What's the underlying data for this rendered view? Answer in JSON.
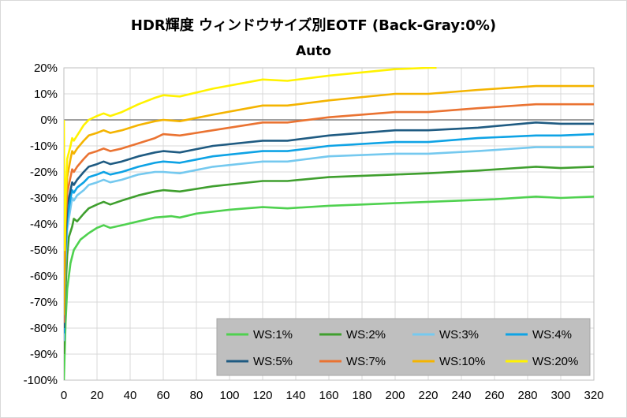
{
  "chart_data": {
    "type": "line",
    "title": "HDR輝度 ウィンドウサイズ別EOTF (Back-Gray:0%)",
    "subtitle": "Auto",
    "xlabel": "",
    "ylabel": "",
    "xlim": [
      0,
      320
    ],
    "ylim": [
      -100,
      20
    ],
    "x_ticks": [
      "0",
      "20",
      "40",
      "60",
      "80",
      "100",
      "120",
      "140",
      "160",
      "180",
      "200",
      "220",
      "240",
      "260",
      "280",
      "300",
      "320"
    ],
    "y_ticks": [
      "20%",
      "10%",
      "0%",
      "-10%",
      "-20%",
      "-30%",
      "-40%",
      "-50%",
      "-60%",
      "-70%",
      "-80%",
      "-90%",
      "-100%"
    ],
    "grid": true,
    "legend_position": "bottom-right",
    "series": [
      {
        "name": "WS:1%",
        "color": "#4fd14f",
        "points": [
          [
            0,
            -100
          ],
          [
            1,
            -78
          ],
          [
            2,
            -65
          ],
          [
            4,
            -55
          ],
          [
            6,
            -50
          ],
          [
            10,
            -46
          ],
          [
            15,
            -43.5
          ],
          [
            20,
            -41.5
          ],
          [
            24,
            -40.5
          ],
          [
            28,
            -41.5
          ],
          [
            35,
            -40.5
          ],
          [
            45,
            -39
          ],
          [
            55,
            -37.5
          ],
          [
            65,
            -37
          ],
          [
            70,
            -37.5
          ],
          [
            80,
            -36
          ],
          [
            100,
            -34.5
          ],
          [
            120,
            -33.5
          ],
          [
            135,
            -34
          ],
          [
            160,
            -33
          ],
          [
            180,
            -32.5
          ],
          [
            200,
            -32
          ],
          [
            220,
            -31.5
          ],
          [
            260,
            -30.5
          ],
          [
            285,
            -29.5
          ],
          [
            300,
            -30
          ],
          [
            320,
            -29.5
          ]
        ]
      },
      {
        "name": "WS:2%",
        "color": "#3f9f2e",
        "points": [
          [
            0,
            -90
          ],
          [
            1,
            -65
          ],
          [
            2,
            -52
          ],
          [
            3,
            -45
          ],
          [
            5,
            -41
          ],
          [
            6,
            -38
          ],
          [
            8,
            -39
          ],
          [
            12,
            -36
          ],
          [
            15,
            -34
          ],
          [
            20,
            -32.5
          ],
          [
            24,
            -31.5
          ],
          [
            28,
            -32.5
          ],
          [
            35,
            -31
          ],
          [
            45,
            -29
          ],
          [
            55,
            -27.5
          ],
          [
            60,
            -27
          ],
          [
            70,
            -27.5
          ],
          [
            90,
            -25.5
          ],
          [
            120,
            -23.5
          ],
          [
            135,
            -23.5
          ],
          [
            160,
            -22
          ],
          [
            200,
            -21
          ],
          [
            220,
            -20.5
          ],
          [
            250,
            -19.5
          ],
          [
            285,
            -18
          ],
          [
            300,
            -18.5
          ],
          [
            320,
            -18
          ]
        ]
      },
      {
        "name": "WS:3%",
        "color": "#75c9ef",
        "points": [
          [
            0,
            -85
          ],
          [
            1,
            -55
          ],
          [
            2,
            -42
          ],
          [
            4,
            -34
          ],
          [
            5,
            -30
          ],
          [
            6,
            -31
          ],
          [
            8,
            -29
          ],
          [
            12,
            -27
          ],
          [
            15,
            -25
          ],
          [
            20,
            -24
          ],
          [
            24,
            -23
          ],
          [
            28,
            -24
          ],
          [
            35,
            -23
          ],
          [
            45,
            -21
          ],
          [
            55,
            -20
          ],
          [
            60,
            -20
          ],
          [
            70,
            -20.5
          ],
          [
            90,
            -18
          ],
          [
            120,
            -16
          ],
          [
            135,
            -16
          ],
          [
            160,
            -14
          ],
          [
            200,
            -13
          ],
          [
            220,
            -13
          ],
          [
            250,
            -12
          ],
          [
            285,
            -10.5
          ],
          [
            300,
            -10.5
          ],
          [
            320,
            -10.5
          ]
        ]
      },
      {
        "name": "WS:4%",
        "color": "#0ea3e5",
        "points": [
          [
            0,
            -82
          ],
          [
            1,
            -50
          ],
          [
            2,
            -38
          ],
          [
            4,
            -30
          ],
          [
            5,
            -27
          ],
          [
            6,
            -28
          ],
          [
            8,
            -26
          ],
          [
            12,
            -24
          ],
          [
            15,
            -22
          ],
          [
            20,
            -21
          ],
          [
            24,
            -20
          ],
          [
            28,
            -21
          ],
          [
            35,
            -20
          ],
          [
            45,
            -18
          ],
          [
            55,
            -16.5
          ],
          [
            60,
            -16
          ],
          [
            70,
            -16.5
          ],
          [
            90,
            -14
          ],
          [
            120,
            -12
          ],
          [
            135,
            -12
          ],
          [
            160,
            -10
          ],
          [
            200,
            -8.5
          ],
          [
            220,
            -8.5
          ],
          [
            250,
            -7
          ],
          [
            285,
            -6
          ],
          [
            300,
            -6
          ],
          [
            320,
            -5.5
          ]
        ]
      },
      {
        "name": "WS:5%",
        "color": "#1f5b82",
        "points": [
          [
            0,
            -80
          ],
          [
            1,
            -45
          ],
          [
            2,
            -33
          ],
          [
            4,
            -27
          ],
          [
            5,
            -24
          ],
          [
            6,
            -25
          ],
          [
            8,
            -23
          ],
          [
            12,
            -20
          ],
          [
            15,
            -18
          ],
          [
            20,
            -17
          ],
          [
            24,
            -16
          ],
          [
            28,
            -17
          ],
          [
            35,
            -16
          ],
          [
            45,
            -14
          ],
          [
            55,
            -12.5
          ],
          [
            60,
            -12
          ],
          [
            70,
            -12.5
          ],
          [
            90,
            -10
          ],
          [
            120,
            -8
          ],
          [
            135,
            -8
          ],
          [
            160,
            -6
          ],
          [
            200,
            -4
          ],
          [
            220,
            -4
          ],
          [
            250,
            -3
          ],
          [
            285,
            -1
          ],
          [
            300,
            -1.5
          ],
          [
            320,
            -1.5
          ]
        ]
      },
      {
        "name": "WS:7%",
        "color": "#ea7332",
        "points": [
          [
            0,
            -78
          ],
          [
            1,
            -40
          ],
          [
            2,
            -28
          ],
          [
            4,
            -22
          ],
          [
            5,
            -19
          ],
          [
            6,
            -20
          ],
          [
            8,
            -18
          ],
          [
            12,
            -15
          ],
          [
            15,
            -13
          ],
          [
            20,
            -12
          ],
          [
            24,
            -11
          ],
          [
            28,
            -12
          ],
          [
            35,
            -11
          ],
          [
            45,
            -9
          ],
          [
            55,
            -7
          ],
          [
            60,
            -5.5
          ],
          [
            70,
            -6
          ],
          [
            90,
            -4
          ],
          [
            120,
            -1
          ],
          [
            135,
            -1
          ],
          [
            160,
            1
          ],
          [
            200,
            3
          ],
          [
            220,
            3
          ],
          [
            250,
            4.5
          ],
          [
            285,
            6
          ],
          [
            300,
            6
          ],
          [
            320,
            6
          ]
        ]
      },
      {
        "name": "WS:10%",
        "color": "#f4b400",
        "points": [
          [
            0,
            -75
          ],
          [
            1,
            -35
          ],
          [
            2,
            -22
          ],
          [
            4,
            -15
          ],
          [
            5,
            -12
          ],
          [
            6,
            -13
          ],
          [
            8,
            -11
          ],
          [
            12,
            -8
          ],
          [
            15,
            -6
          ],
          [
            20,
            -5
          ],
          [
            24,
            -4
          ],
          [
            28,
            -5
          ],
          [
            35,
            -4
          ],
          [
            45,
            -2
          ],
          [
            55,
            -0.5
          ],
          [
            60,
            0
          ],
          [
            70,
            -0.5
          ],
          [
            90,
            2
          ],
          [
            120,
            5.5
          ],
          [
            135,
            5.5
          ],
          [
            160,
            7.5
          ],
          [
            200,
            10
          ],
          [
            220,
            10
          ],
          [
            250,
            11.5
          ],
          [
            285,
            13
          ],
          [
            300,
            13
          ],
          [
            320,
            13
          ]
        ]
      },
      {
        "name": "WS:20%",
        "color": "#fff200",
        "points": [
          [
            0,
            0
          ],
          [
            0.5,
            -50
          ],
          [
            1,
            -30
          ],
          [
            2,
            -15
          ],
          [
            4,
            -10
          ],
          [
            5,
            -7
          ],
          [
            6,
            -8
          ],
          [
            8,
            -6
          ],
          [
            12,
            -2
          ],
          [
            15,
            0
          ],
          [
            20,
            1.5
          ],
          [
            24,
            2.5
          ],
          [
            28,
            1.5
          ],
          [
            35,
            3
          ],
          [
            45,
            6
          ],
          [
            55,
            8.5
          ],
          [
            60,
            9.5
          ],
          [
            70,
            9
          ],
          [
            90,
            12
          ],
          [
            120,
            15.5
          ],
          [
            135,
            15
          ],
          [
            160,
            17
          ],
          [
            200,
            19.5
          ],
          [
            220,
            20
          ],
          [
            225,
            20
          ]
        ]
      }
    ]
  }
}
